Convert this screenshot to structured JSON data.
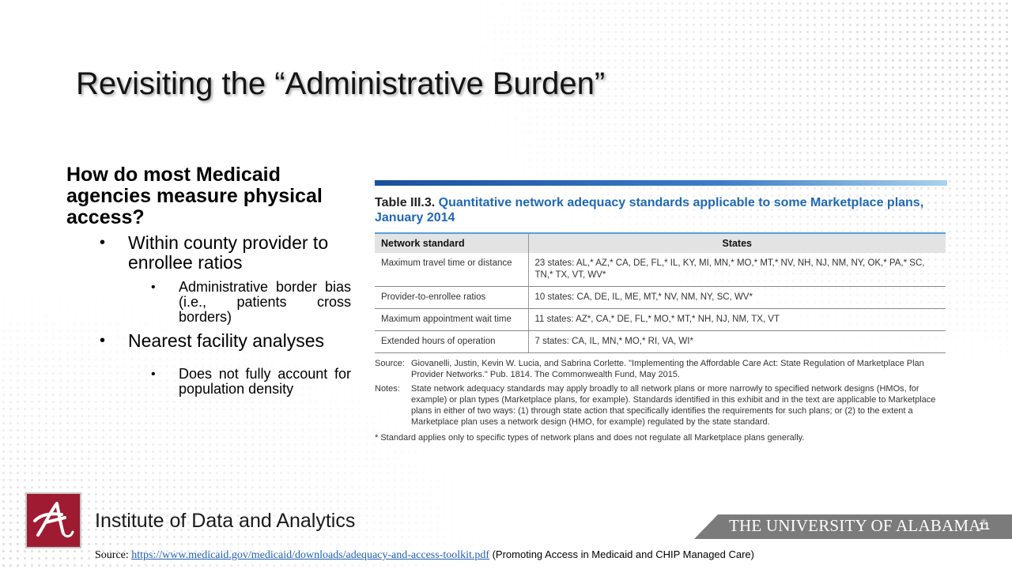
{
  "slide": {
    "title": "Revisiting the “Administrative Burden”",
    "slide_number": "11"
  },
  "left": {
    "question": "How do most Medicaid agencies measure physical access?",
    "bullet_1": "Within county provider to enrollee ratios",
    "bullet_1_sub": "Administrative border bias (i.e., patients cross borders)",
    "bullet_2": "Nearest facility analyses",
    "bullet_2_sub": "Does not fully account for population density"
  },
  "table": {
    "number": "Table III.3.",
    "caption": "Quantitative network adequacy standards applicable to some Marketplace plans, January 2014",
    "headers": [
      "Network standard",
      "States"
    ],
    "rows": [
      [
        "Maximum travel time or distance",
        "23 states: AL,* AZ,* CA, DE, FL,* IL, KY, MI, MN,* MO,* MT,* NV, NH, NJ, NM, NY, OK,* PA,* SC, TN,* TX, VT, WV*"
      ],
      [
        "Provider-to-enrollee ratios",
        "10 states: CA, DE, IL, ME, MT,* NV, NM, NY, SC, WV*"
      ],
      [
        "Maximum appointment wait time",
        "11 states: AZ*, CA,* DE, FL,* MO,* MT,* NH, NJ, NM, TX, VT"
      ],
      [
        "Extended hours of operation",
        "7 states: CA, IL, MN,* MO,* RI, VA, WI*"
      ]
    ],
    "source_label": "Source:",
    "source_text": "Giovanelli, Justin, Kevin W. Lucia, and Sabrina Corlette. \"Implementing the Affordable Care Act: State Regulation of Marketplace Plan Provider Networks.\" Pub. 1814. The Commonwealth Fund, May 2015.",
    "notes_label": "Notes:",
    "notes_text": "State network adequacy standards may apply broadly to all network plans or more narrowly to specified network designs (HMOs, for example) or plan types (Marketplace plans, for example). Standards identified in this exhibit and in the text are applicable to Marketplace plans in either of two ways: (1) through state action that specifically identifies the requirements for such plans; or (2) to the extent a Marketplace plan uses a network design (HMO, for example) regulated by the state standard.",
    "footnote": "* Standard applies only to specific types of network plans and does not regulate all Marketplace plans generally."
  },
  "footer": {
    "institute": "Institute of Data and Analytics",
    "university": "THE UNIVERSITY OF ALABAMA",
    "registered": "®",
    "source_label": "Source:",
    "source_url": "https://www.medicaid.gov/medicaid/downloads/adequacy-and-access-toolkit.pdf",
    "source_desc": "(Promoting Access in Medicaid and CHIP Managed Care)"
  },
  "colors": {
    "crimson": "#9e1b32",
    "caption_blue": "#1f68b4",
    "footer_bar": "#7b7b7b"
  },
  "icons": {
    "logo": "ua-script-a-logo"
  }
}
